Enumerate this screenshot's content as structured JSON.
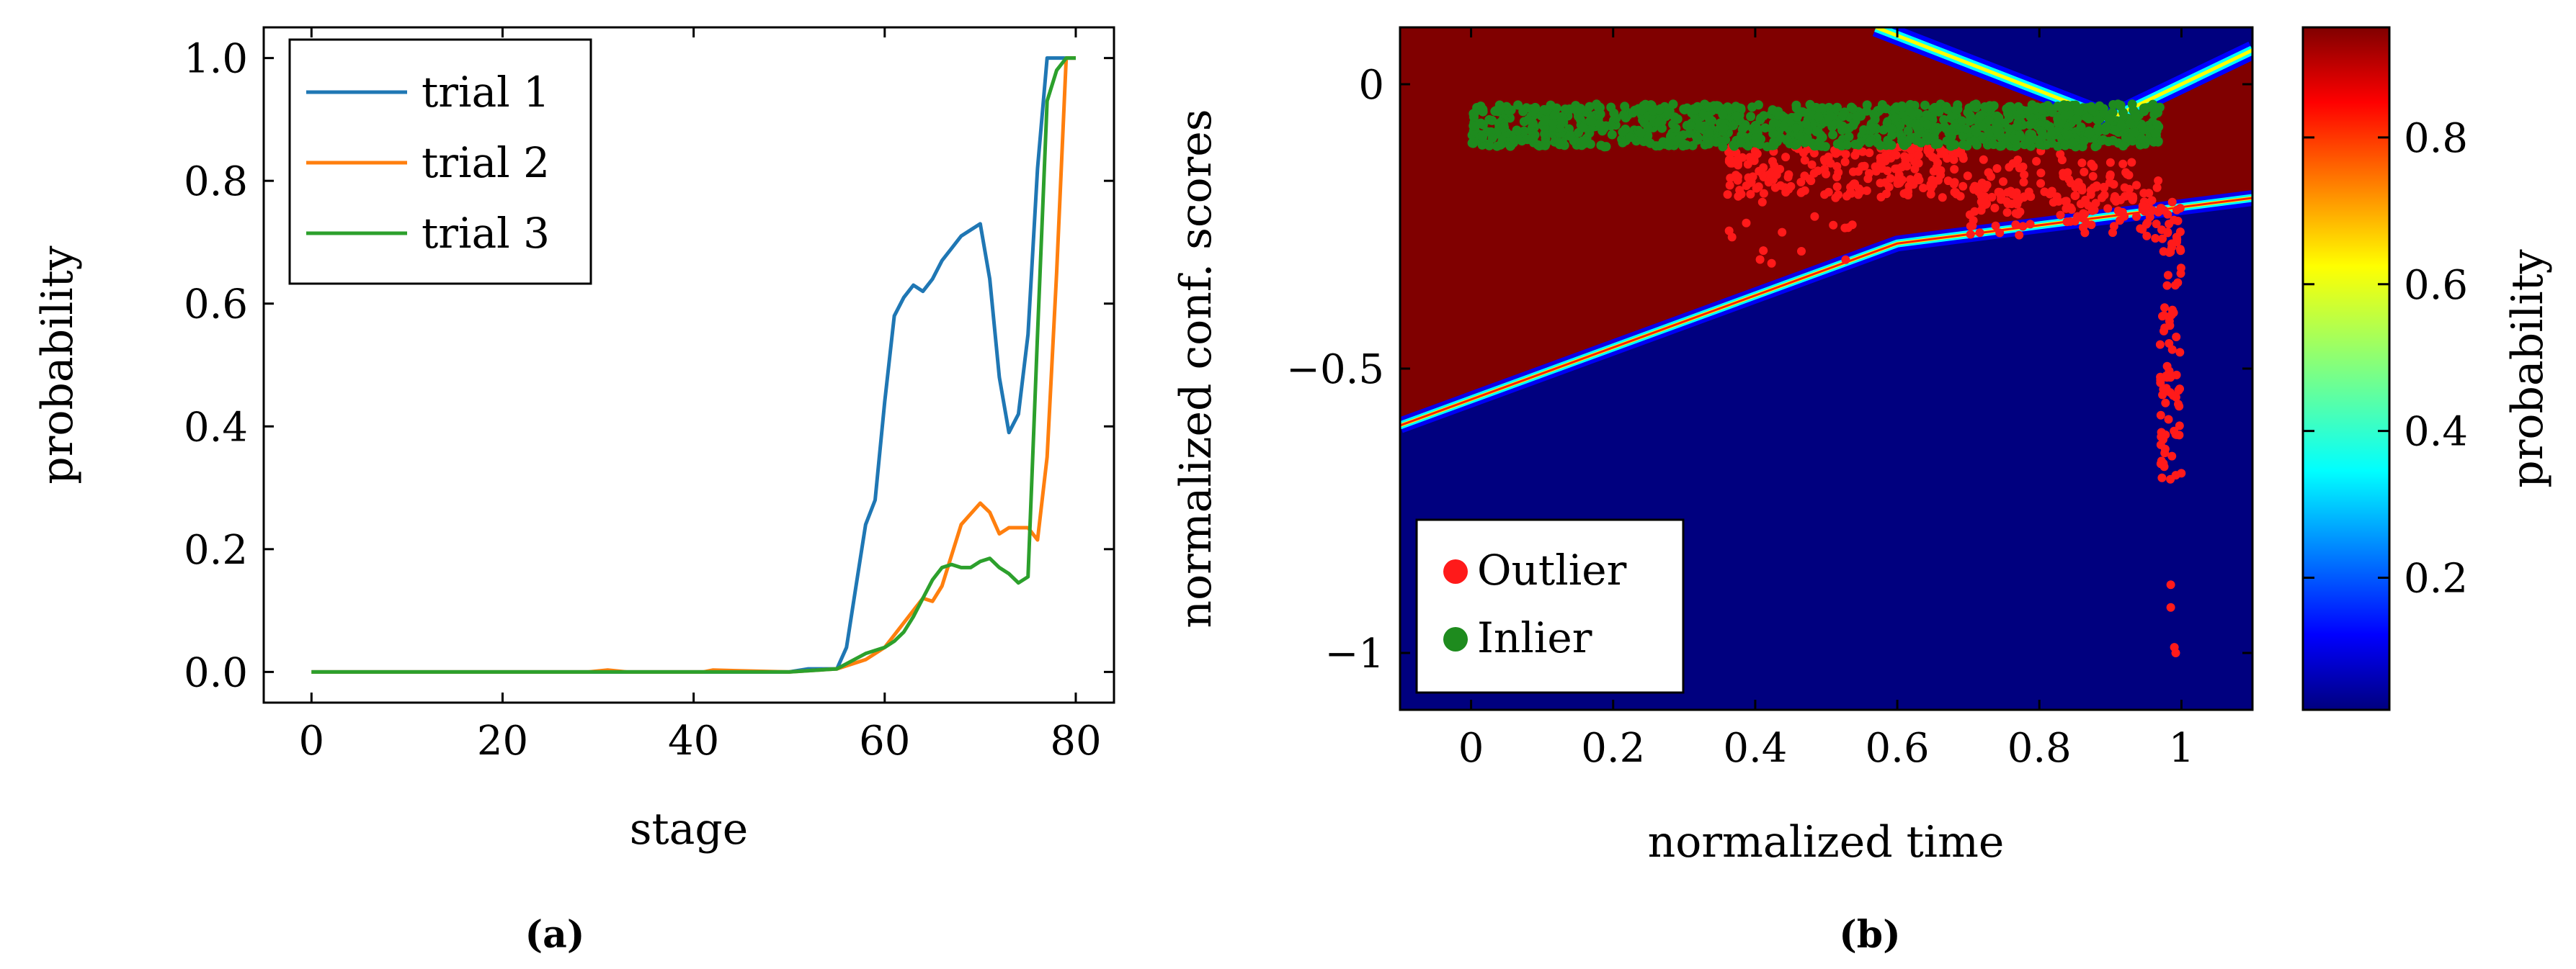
{
  "chart_data": [
    {
      "type": "line",
      "panel_label": "(a)",
      "xlabel": "stage",
      "ylabel": "probability",
      "xlim": [
        -5,
        84
      ],
      "ylim": [
        -0.05,
        1.05
      ],
      "xticks": [
        0,
        20,
        40,
        60,
        80
      ],
      "yticks": [
        0.0,
        0.2,
        0.4,
        0.6,
        0.8,
        1.0
      ],
      "xtick_labels": [
        "0",
        "20",
        "40",
        "60",
        "80"
      ],
      "ytick_labels": [
        "0.0",
        "0.2",
        "0.4",
        "0.6",
        "0.8",
        "1.0"
      ],
      "legend": "top-left",
      "series": [
        {
          "name": "trial 1",
          "color": "#1f77b4",
          "x": [
            0,
            50,
            52,
            53,
            55,
            56,
            57,
            58,
            59,
            60,
            61,
            62,
            63,
            64,
            65,
            66,
            67,
            68,
            69,
            70,
            71,
            72,
            73,
            74,
            75,
            76,
            77,
            78,
            79,
            80
          ],
          "y": [
            0,
            0,
            0.005,
            0.005,
            0.005,
            0.04,
            0.14,
            0.24,
            0.28,
            0.44,
            0.58,
            0.61,
            0.63,
            0.62,
            0.64,
            0.67,
            0.69,
            0.71,
            0.72,
            0.73,
            0.64,
            0.48,
            0.39,
            0.42,
            0.55,
            0.82,
            1.0,
            1.0,
            1.0,
            1.0
          ]
        },
        {
          "name": "trial 2",
          "color": "#ff7f0e",
          "x": [
            0,
            29,
            31,
            33,
            41,
            42,
            50,
            55,
            58,
            60,
            62,
            64,
            65,
            66,
            68,
            70,
            71,
            72,
            73,
            75,
            76,
            77,
            78,
            79,
            80
          ],
          "y": [
            0,
            0,
            0.003,
            0,
            0,
            0.003,
            0,
            0.005,
            0.02,
            0.04,
            0.08,
            0.12,
            0.115,
            0.14,
            0.24,
            0.275,
            0.26,
            0.225,
            0.235,
            0.235,
            0.215,
            0.35,
            0.65,
            1.0,
            1.0
          ]
        },
        {
          "name": "trial 3",
          "color": "#2ca02c",
          "x": [
            0,
            50,
            55,
            58,
            60,
            61,
            62,
            63,
            64,
            65,
            66,
            67,
            68,
            69,
            70,
            71,
            72,
            73,
            74,
            75,
            76,
            77,
            78,
            79,
            80
          ],
          "y": [
            0,
            0,
            0.005,
            0.03,
            0.04,
            0.05,
            0.065,
            0.09,
            0.12,
            0.15,
            0.17,
            0.175,
            0.17,
            0.17,
            0.18,
            0.185,
            0.17,
            0.16,
            0.145,
            0.155,
            0.55,
            0.93,
            0.98,
            1.0,
            1.0
          ]
        }
      ]
    },
    {
      "type": "heatmap",
      "panel_label": "(b)",
      "xlabel": "normalized time",
      "ylabel": "normalized conf. scores",
      "colorbar_label": "probability",
      "xlim": [
        -0.1,
        1.1
      ],
      "ylim": [
        -1.1,
        0.1
      ],
      "xticks": [
        0,
        0.2,
        0.4,
        0.6,
        0.8,
        1.0
      ],
      "xtick_labels": [
        "0",
        "0.2",
        "0.4",
        "0.6",
        "0.8",
        "1"
      ],
      "yticks": [
        0,
        -0.5,
        -1
      ],
      "ytick_labels": [
        "0",
        "−0.5",
        "−1"
      ],
      "colorbar_ticks": [
        0.2,
        0.4,
        0.6,
        0.8
      ],
      "colorbar_tick_labels": [
        "0.2",
        "0.4",
        "0.6",
        "0.8"
      ],
      "colorbar_range": [
        0.02,
        0.95
      ],
      "decision_boundary": {
        "lower_line": {
          "x": [
            -0.1,
            0.6,
            1.1
          ],
          "y": [
            -0.6,
            -0.28,
            -0.2
          ]
        },
        "upper_line": {
          "x": [
            0.57,
            0.9,
            1.1
          ],
          "y": [
            0.1,
            -0.06,
            0.06
          ]
        }
      },
      "legend": "bottom-left",
      "series": [
        {
          "name": "Outlier",
          "color": "#ff1a1a",
          "x_range": [
            0.36,
            1.0
          ],
          "y_range": [
            -1.0,
            -0.08
          ]
        },
        {
          "name": "Inlier",
          "color": "#1e8b1e",
          "x_range": [
            0.0,
            0.97
          ],
          "y_range": [
            -0.12,
            -0.01
          ]
        }
      ]
    }
  ]
}
